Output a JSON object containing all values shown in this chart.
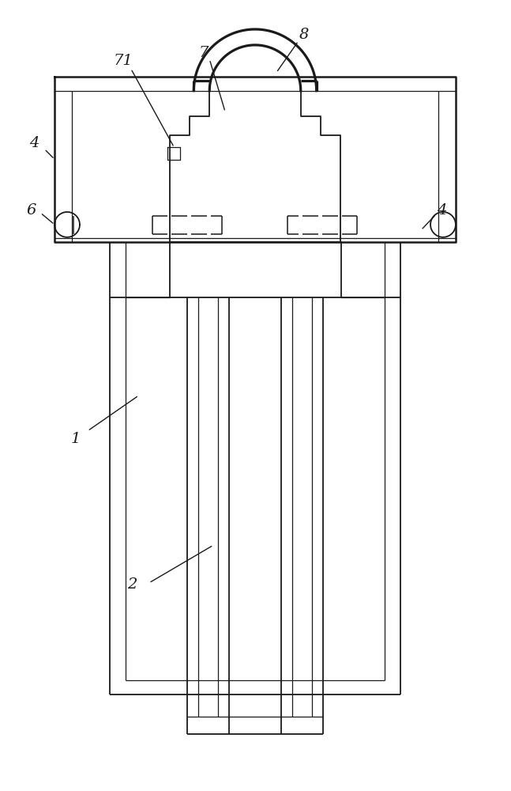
{
  "bg_color": "#ffffff",
  "line_color": "#1a1a1a",
  "lw_thick": 1.8,
  "lw_med": 1.3,
  "lw_thin": 0.9,
  "lw_dash": 1.1,
  "fig_width": 6.47,
  "fig_height": 10.0
}
